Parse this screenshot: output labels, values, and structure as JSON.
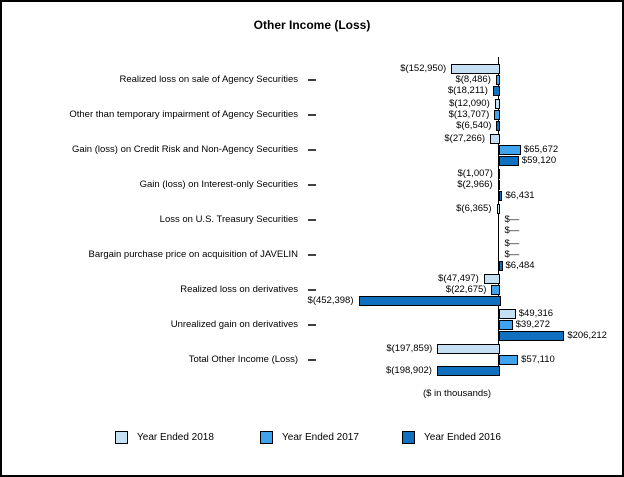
{
  "window": {
    "background": "#ffffff",
    "border_color": "#000000"
  },
  "chart_data": {
    "type": "bar",
    "orientation": "horizontal",
    "title": "Other Income (Loss)",
    "axis_note": "($ in thousands)",
    "xlim": [
      -460000,
      215000
    ],
    "grid": false,
    "legend_position": "bottom",
    "categories": [
      "Realized loss on sale of Agency Securities",
      "Other than temporary impairment of Agency Securities",
      "Gain (loss) on Credit Risk and Non-Agency Securities",
      "Gain (loss) on Interest-only Securities",
      "Loss on U.S. Treasury Securities",
      "Bargain purchase price on acquisition of JAVELIN",
      "Realized loss on derivatives",
      "Unrealized gain on derivatives",
      "Total Other Income (Loss)"
    ],
    "series": [
      {
        "name": "Year Ended 2018",
        "color": "#C5E0F3",
        "values": [
          -152950,
          -12090,
          -27266,
          -1007,
          -6365,
          0,
          -47497,
          49316,
          -197859
        ],
        "labels": [
          "$(152,950)",
          "$(12,090)",
          "$(27,266)",
          "$(1,007)",
          "$(6,365)",
          "$—",
          "$(47,497)",
          "$49,316",
          "$(197,859)"
        ]
      },
      {
        "name": "Year Ended 2017",
        "color": "#3FA3EE",
        "values": [
          -8486,
          -13707,
          65672,
          -2966,
          0,
          0,
          -22675,
          39272,
          57110
        ],
        "labels": [
          "$(8,486)",
          "$(13,707)",
          "$65,672",
          "$(2,966)",
          "$—",
          "$—",
          "$(22,675)",
          "$39,272",
          "$57,110"
        ]
      },
      {
        "name": "Year Ended 2016",
        "color": "#1070C0",
        "values": [
          -18211,
          -6540,
          59120,
          6431,
          0,
          6484,
          -452398,
          206212,
          -198902
        ],
        "labels": [
          "$(18,211)",
          "$(6,540)",
          "$59,120",
          "$6,431",
          "$—",
          "$6,484",
          "$(452,398)",
          "$206,212",
          "$(198,902)"
        ]
      }
    ]
  }
}
